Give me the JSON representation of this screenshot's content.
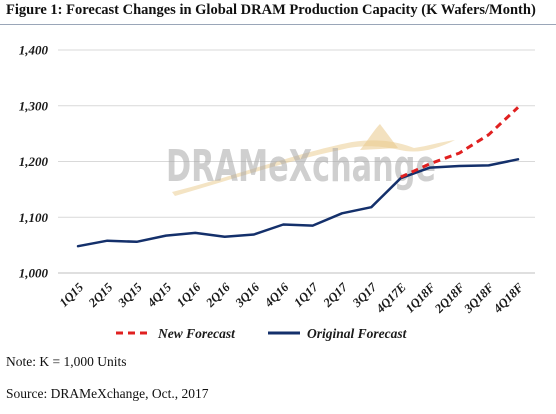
{
  "title": "Figure 1: Forecast Changes in Global DRAM Production Capacity (K Wafers/Month)",
  "watermark": "DRAMeXchange",
  "note": "Note: K = 1,000 Units",
  "source": "Source: DRAMeXchange, Oct., 2017",
  "colors": {
    "new_forecast": "#e02020",
    "original_forecast": "#14306b",
    "grid": "#d9d9d9",
    "watermark_swoosh": "#e9c98a"
  },
  "chart_data": {
    "type": "line",
    "title": "Figure 1: Forecast Changes in Global DRAM Production Capacity (K Wafers/Month)",
    "xlabel": "",
    "ylabel": "",
    "ylim": [
      1000,
      1400
    ],
    "yticks": [
      1000,
      1100,
      1200,
      1300,
      1400
    ],
    "ytick_labels": [
      "1,000",
      "1,100",
      "1,200",
      "1,300",
      "1,400"
    ],
    "grid": true,
    "legend_position": "bottom",
    "categories": [
      "1Q15",
      "2Q15",
      "3Q15",
      "4Q15",
      "1Q16",
      "2Q16",
      "3Q16",
      "4Q16",
      "1Q17",
      "2Q17",
      "3Q17",
      "4Q17E",
      "1Q18F",
      "2Q18F",
      "3Q18F",
      "4Q18F"
    ],
    "series": [
      {
        "name": "New Forecast",
        "style": "dashed",
        "color": "#e02020",
        "values": [
          null,
          null,
          null,
          null,
          null,
          null,
          null,
          null,
          null,
          null,
          null,
          1172,
          1196,
          1215,
          1248,
          1297
        ]
      },
      {
        "name": "Original Forecast",
        "style": "solid",
        "color": "#14306b",
        "values": [
          1048,
          1058,
          1056,
          1067,
          1072,
          1065,
          1069,
          1087,
          1085,
          1107,
          1118,
          1170,
          1189,
          1192,
          1193,
          1204
        ]
      }
    ]
  }
}
